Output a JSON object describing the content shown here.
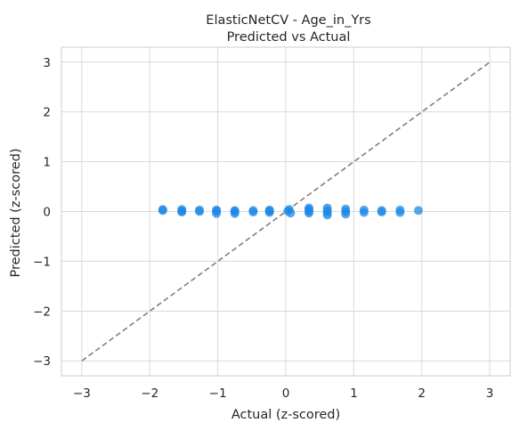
{
  "chart_data": {
    "type": "scatter",
    "title_line1": "ElasticNetCV - Age_in_Yrs",
    "title_line2": "Predicted vs Actual",
    "xlabel": "Actual (z-scored)",
    "ylabel": "Predicted (z-scored)",
    "xlim": [
      -3.3,
      3.3
    ],
    "ylim": [
      -3.3,
      3.3
    ],
    "xticks": [
      -3,
      -2,
      -1,
      0,
      1,
      2,
      3
    ],
    "yticks": [
      -3,
      -2,
      -1,
      0,
      1,
      2,
      3
    ],
    "xtick_labels": [
      "−3",
      "−2",
      "−1",
      "0",
      "1",
      "2",
      "3"
    ],
    "ytick_labels": [
      "−3",
      "−2",
      "−1",
      "0",
      "1",
      "2",
      "3"
    ],
    "grid": true,
    "reference_line": {
      "type": "identity",
      "from": -3,
      "to": 3,
      "color": "#7f7f7f",
      "style": "dashed"
    },
    "point_color": "#1e88e5",
    "points": [
      {
        "x": -1.81,
        "y": 0.02
      },
      {
        "x": -1.81,
        "y": 0.04
      },
      {
        "x": -1.53,
        "y": 0.01
      },
      {
        "x": -1.53,
        "y": 0.04
      },
      {
        "x": -1.53,
        "y": -0.01
      },
      {
        "x": -1.27,
        "y": 0.03
      },
      {
        "x": -1.27,
        "y": 0.0
      },
      {
        "x": -1.02,
        "y": 0.01
      },
      {
        "x": -1.02,
        "y": -0.04
      },
      {
        "x": -1.02,
        "y": 0.03
      },
      {
        "x": -0.75,
        "y": 0.02
      },
      {
        "x": -0.75,
        "y": -0.04
      },
      {
        "x": -0.75,
        "y": 0.0
      },
      {
        "x": -0.48,
        "y": 0.02
      },
      {
        "x": -0.48,
        "y": -0.01
      },
      {
        "x": -0.24,
        "y": 0.03
      },
      {
        "x": -0.24,
        "y": -0.02
      },
      {
        "x": -0.24,
        "y": 0.01
      },
      {
        "x": 0.03,
        "y": 0.01
      },
      {
        "x": 0.05,
        "y": 0.04
      },
      {
        "x": 0.07,
        "y": -0.03
      },
      {
        "x": 0.34,
        "y": 0.07
      },
      {
        "x": 0.34,
        "y": 0.0
      },
      {
        "x": 0.34,
        "y": -0.03
      },
      {
        "x": 0.34,
        "y": 0.04
      },
      {
        "x": 0.61,
        "y": 0.07
      },
      {
        "x": 0.61,
        "y": 0.02
      },
      {
        "x": 0.61,
        "y": -0.07
      },
      {
        "x": 0.61,
        "y": -0.02
      },
      {
        "x": 0.88,
        "y": 0.05
      },
      {
        "x": 0.88,
        "y": 0.0
      },
      {
        "x": 0.88,
        "y": -0.05
      },
      {
        "x": 1.15,
        "y": 0.03
      },
      {
        "x": 1.15,
        "y": -0.02
      },
      {
        "x": 1.41,
        "y": 0.02
      },
      {
        "x": 1.41,
        "y": -0.01
      },
      {
        "x": 1.68,
        "y": 0.03
      },
      {
        "x": 1.68,
        "y": -0.02
      },
      {
        "x": 1.95,
        "y": 0.02
      }
    ]
  }
}
